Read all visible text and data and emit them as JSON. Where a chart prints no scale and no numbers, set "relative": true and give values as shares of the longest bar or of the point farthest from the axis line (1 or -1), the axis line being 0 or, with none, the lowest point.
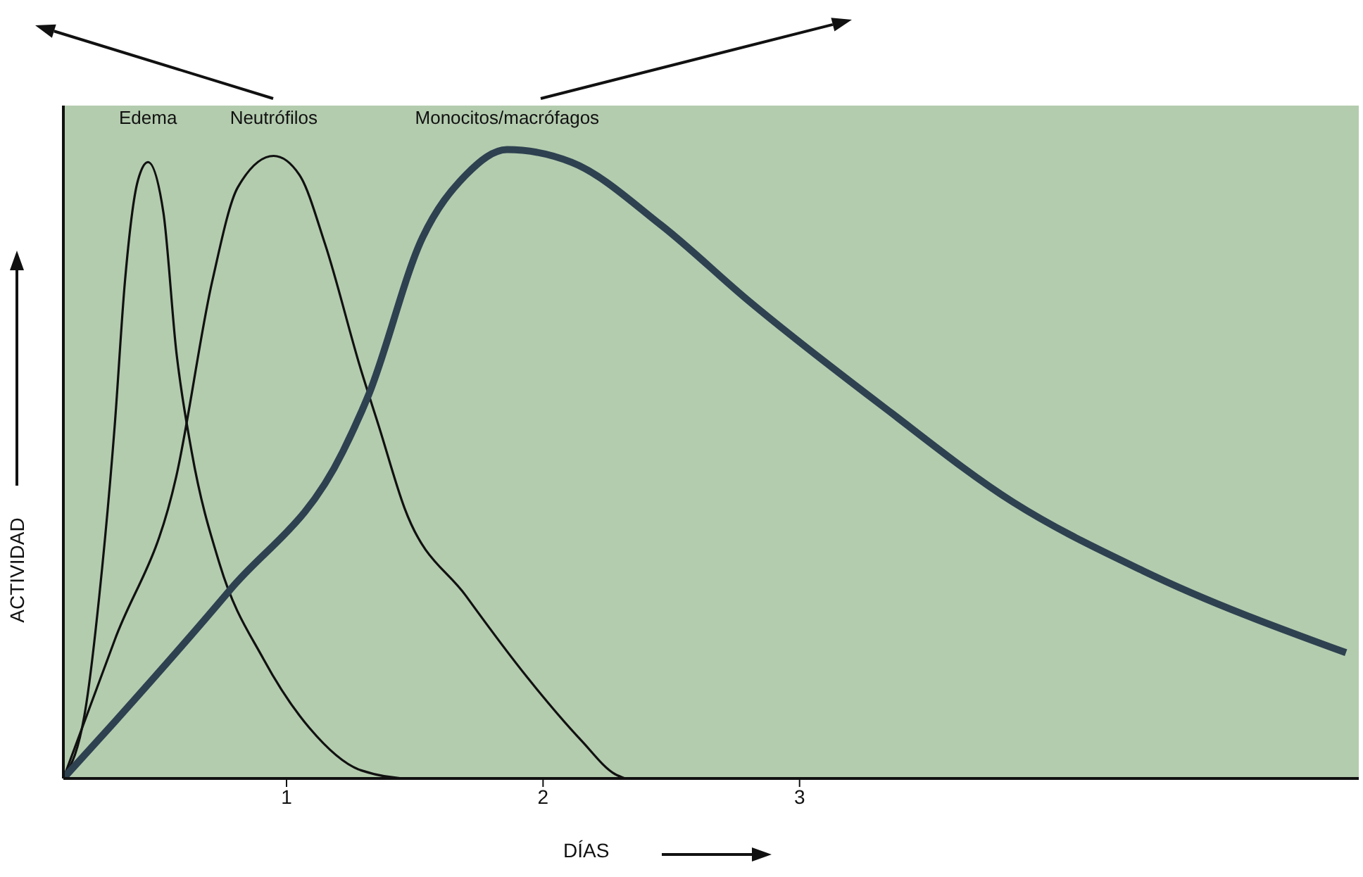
{
  "chart_data": {
    "type": "line",
    "relative": true,
    "xlabel": "DÍAS",
    "ylabel": "ACTIVIDAD",
    "xlim": [
      0.13,
      5.18
    ],
    "xticks": [
      1,
      2,
      3
    ],
    "tick_labels": "x",
    "series": [
      {
        "name": "Edema",
        "color": "#111111",
        "x": [
          0.13,
          0.22,
          0.27,
          0.33,
          0.37,
          0.42,
          0.46,
          0.52,
          0.57,
          0.63,
          0.74,
          0.91,
          1.09,
          1.29,
          1.48,
          1.64
        ],
        "values": [
          0,
          0.12,
          0.29,
          0.56,
          0.79,
          0.95,
          0.98,
          0.9,
          0.68,
          0.52,
          0.34,
          0.19,
          0.08,
          0.013,
          0,
          0
        ]
      },
      {
        "name": "Neutrófilos",
        "color": "#111111",
        "x": [
          0.13,
          0.33,
          0.57,
          0.71,
          0.81,
          0.95,
          1.05,
          1.15,
          1.29,
          1.36,
          1.46,
          1.7,
          1.94,
          2.15,
          2.28,
          2.32
        ],
        "values": [
          0,
          0.22,
          0.48,
          0.79,
          0.94,
          0.99,
          0.96,
          0.85,
          0.65,
          0.56,
          0.43,
          0.29,
          0.16,
          0.06,
          0.007,
          0
        ]
      },
      {
        "name": "Monocitos/macrófagos",
        "color": "#2e4150",
        "x": [
          0.13,
          0.33,
          0.78,
          1.22,
          1.32,
          1.53,
          1.7,
          1.86,
          2.11,
          2.46,
          2.8,
          3.33,
          3.83,
          4.34,
          5.13
        ],
        "values": [
          0,
          0.09,
          0.3,
          0.52,
          0.61,
          0.86,
          0.96,
          1,
          0.98,
          0.88,
          0.76,
          0.59,
          0.44,
          0.33,
          0.2
        ]
      }
    ]
  }
}
